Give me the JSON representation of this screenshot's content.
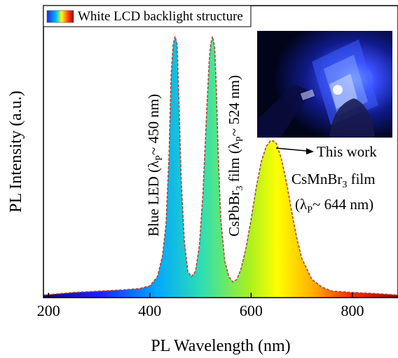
{
  "chart_data": {
    "type": "area",
    "title": "",
    "xlabel": "PL Wavelength (nm)",
    "ylabel": "PL Intensity (a.u.)",
    "xlim": [
      190,
      890
    ],
    "ylim": [
      0,
      1
    ],
    "xticks": [
      200,
      400,
      600,
      800
    ],
    "grid": false,
    "legend": {
      "position": "top-left",
      "entries": [
        "White LCD backlight structure"
      ]
    },
    "series": [
      {
        "name": "White LCD backlight structure",
        "x": [
          190,
          250,
          300,
          350,
          380,
          400,
          415,
          425,
          432,
          438,
          442,
          446,
          450,
          454,
          458,
          462,
          468,
          475,
          482,
          490,
          498,
          505,
          512,
          517,
          520,
          524,
          528,
          531,
          535,
          540,
          548,
          556,
          564,
          572,
          580,
          590,
          600,
          610,
          620,
          630,
          638,
          644,
          650,
          660,
          670,
          680,
          690,
          700,
          720,
          740,
          760,
          800,
          850,
          890
        ],
        "y": [
          0.01,
          0.02,
          0.025,
          0.03,
          0.035,
          0.045,
          0.08,
          0.16,
          0.28,
          0.55,
          0.85,
          0.97,
          1.0,
          0.97,
          0.72,
          0.45,
          0.22,
          0.1,
          0.08,
          0.1,
          0.2,
          0.4,
          0.7,
          0.9,
          0.97,
          1.0,
          0.96,
          0.82,
          0.55,
          0.3,
          0.14,
          0.08,
          0.06,
          0.07,
          0.11,
          0.19,
          0.3,
          0.42,
          0.52,
          0.58,
          0.6,
          0.6,
          0.59,
          0.53,
          0.44,
          0.33,
          0.23,
          0.15,
          0.07,
          0.04,
          0.025,
          0.02,
          0.015,
          0.01
        ]
      }
    ],
    "annotations": [
      {
        "id": "blue-led",
        "line1": "Blue LED (λ",
        "sub": "P",
        "line2": "~ 450 nm)"
      },
      {
        "id": "cspbbr3",
        "prefix": "CsPbBr",
        "sub3": "3",
        "mid": " film (λ",
        "subP": "P",
        "suffix": "~ 524 nm)"
      },
      {
        "id": "this-work",
        "text": "This work"
      },
      {
        "id": "csmnbr3",
        "prefix": "CsMnBr",
        "sub3": "3",
        "suffix": " film"
      },
      {
        "id": "csmnbr3-peak",
        "prefix": "(λ",
        "subP": "P",
        "suffix": "~ 644 nm)"
      }
    ]
  }
}
